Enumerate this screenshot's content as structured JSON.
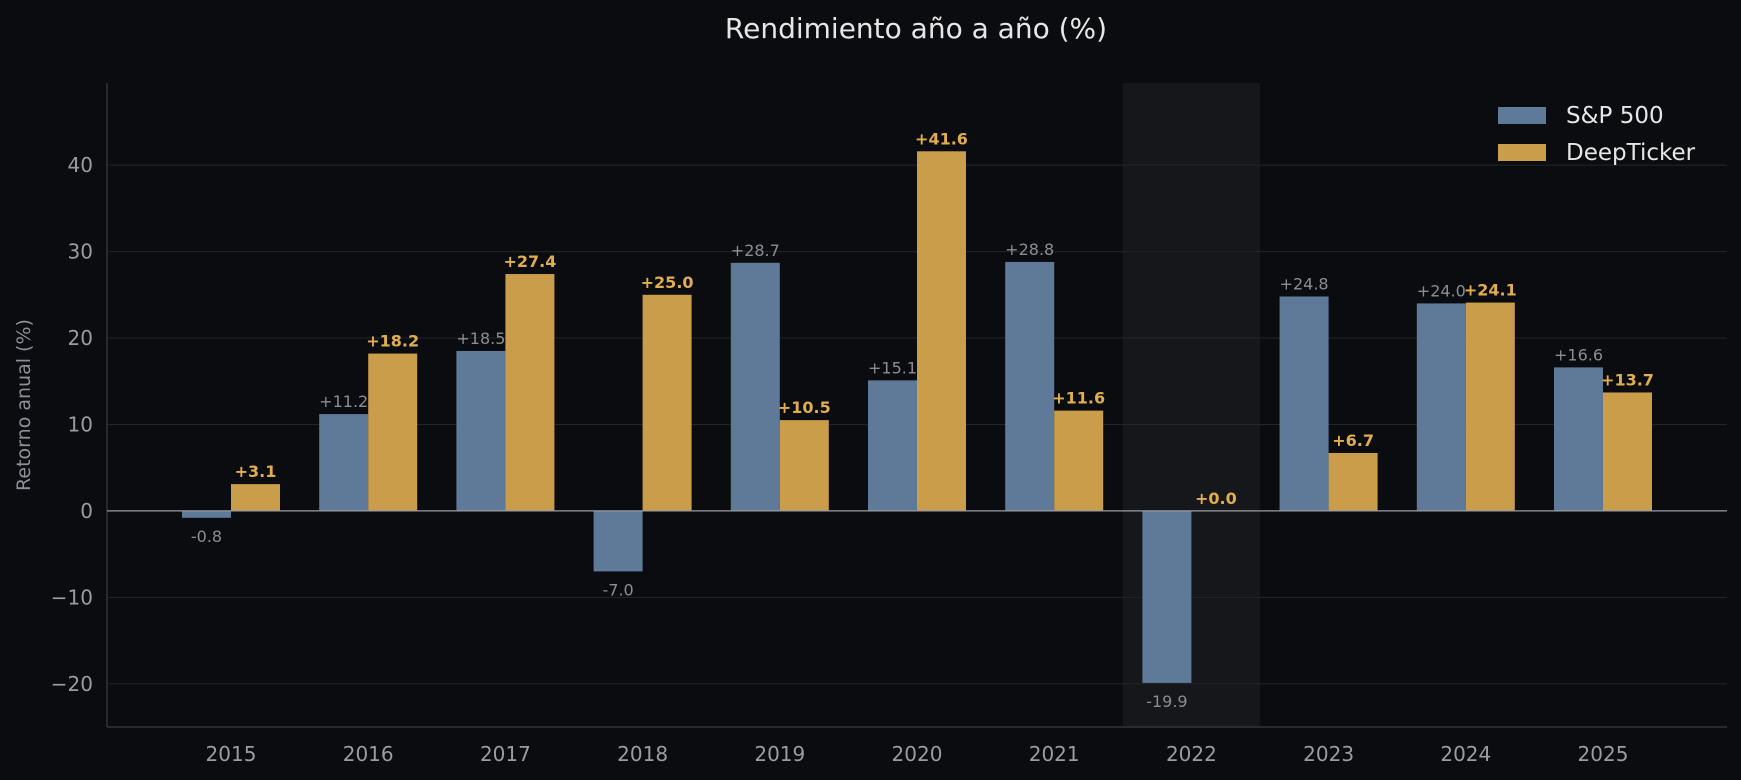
{
  "chart_data": {
    "type": "bar",
    "title": "Rendimiento año a año (%)",
    "xlabel": "",
    "ylabel": "Retorno anual (%)",
    "ylim": [
      -25,
      49.5
    ],
    "yticks": [
      -20,
      -10,
      0,
      10,
      20,
      30,
      40
    ],
    "ytick_labels": [
      "−20",
      "−10",
      "0",
      "10",
      "20",
      "30",
      "40"
    ],
    "grid": true,
    "legend_position": "top-right",
    "highlighted_category": "2022",
    "categories": [
      "2015",
      "2016",
      "2017",
      "2018",
      "2019",
      "2020",
      "2021",
      "2022",
      "2023",
      "2024",
      "2025"
    ],
    "series": [
      {
        "name": "S&P 500",
        "color": "#5f7a99",
        "label_color": "#8a8d94",
        "values": [
          -0.8,
          11.2,
          18.5,
          -7.0,
          28.7,
          15.1,
          28.8,
          -19.9,
          24.8,
          24.0,
          16.6
        ],
        "labels": [
          "-0.8",
          "+11.2",
          "+18.5",
          "-7.0",
          "+28.7",
          "+15.1",
          "+28.8",
          "-19.9",
          "+24.8",
          "+24.0",
          "+16.6"
        ]
      },
      {
        "name": "DeepTicker",
        "color": "#c99d4a",
        "label_color": "#e0ae4f",
        "values": [
          3.1,
          18.2,
          27.4,
          25.0,
          10.5,
          41.6,
          11.6,
          0.0,
          6.7,
          24.1,
          13.7
        ],
        "labels": [
          "+3.1",
          "+18.2",
          "+27.4",
          "+25.0",
          "+10.5",
          "+41.6",
          "+11.6",
          "+0.0",
          "+6.7",
          "+24.1",
          "+13.7"
        ]
      }
    ]
  }
}
